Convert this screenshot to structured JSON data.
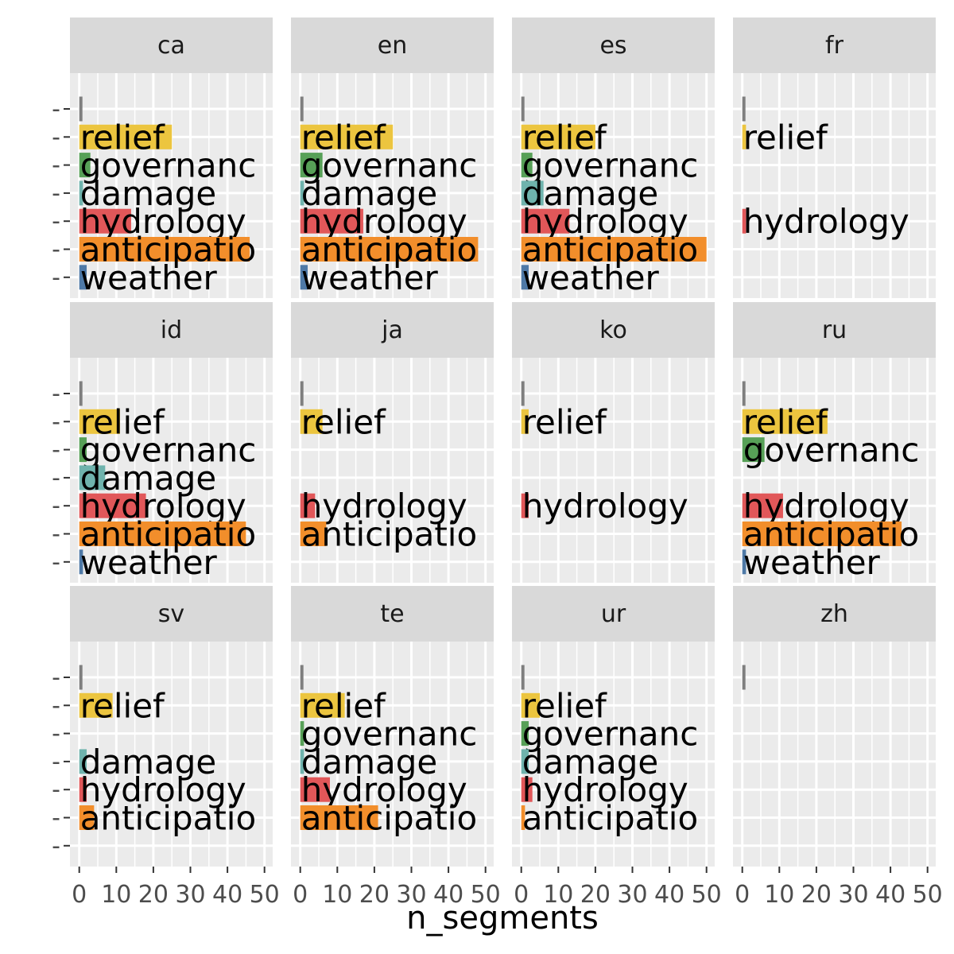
{
  "chart_data": {
    "type": "bar",
    "orientation": "horizontal",
    "xlabel": "n_segments",
    "ylabel": "",
    "xlim": [
      0,
      50
    ],
    "x_ticks": [
      0,
      10,
      20,
      30,
      40,
      50
    ],
    "x_tick_labels": [
      "0",
      "10",
      "20",
      "30",
      "40",
      "50"
    ],
    "grid": true,
    "legend": "none",
    "categories": [
      "",
      "relief",
      "governanc",
      "damage",
      "hydrology",
      "anticipatio",
      "weather"
    ],
    "y_tick_labels": [
      "-",
      "-",
      "-",
      "-",
      "-",
      "-",
      "-"
    ],
    "category_colors": {
      "": "#7f7f7f",
      "relief": "#ecc53f",
      "governanc": "#57a057",
      "damage": "#6fb3ad",
      "hydrology": "#e15759",
      "anticipatio": "#f28e2b",
      "weather": "#4e79a7"
    },
    "panels": [
      {
        "facet": "ca",
        "values": {
          "": 1,
          "relief": 25,
          "governanc": 3,
          "damage": 1,
          "hydrology": 14,
          "anticipatio": 46,
          "weather": 2
        }
      },
      {
        "facet": "en",
        "values": {
          "": 1,
          "relief": 25,
          "governanc": 6,
          "damage": 1,
          "hydrology": 17,
          "anticipatio": 48,
          "weather": 2
        }
      },
      {
        "facet": "es",
        "values": {
          "": 1,
          "relief": 20,
          "governanc": 3,
          "damage": 6,
          "hydrology": 13,
          "anticipatio": 50,
          "weather": 2
        }
      },
      {
        "facet": "fr",
        "values": {
          "": 1,
          "relief": 1,
          "hydrology": 1
        }
      },
      {
        "facet": "id",
        "values": {
          "": 1,
          "relief": 11,
          "governanc": 2,
          "damage": 7,
          "hydrology": 18,
          "anticipatio": 45,
          "weather": 1
        }
      },
      {
        "facet": "ja",
        "values": {
          "": 1,
          "relief": 6,
          "hydrology": 4,
          "anticipatio": 7
        }
      },
      {
        "facet": "ko",
        "values": {
          "": 1,
          "relief": 2,
          "hydrology": 2
        }
      },
      {
        "facet": "ru",
        "values": {
          "": 1,
          "relief": 23,
          "governanc": 6,
          "hydrology": 11,
          "anticipatio": 43,
          "weather": 1
        }
      },
      {
        "facet": "sv",
        "values": {
          "": 1,
          "relief": 9,
          "damage": 2,
          "hydrology": 2,
          "anticipatio": 4
        }
      },
      {
        "facet": "te",
        "values": {
          "": 1,
          "relief": 12,
          "governanc": 1,
          "damage": 1,
          "hydrology": 8,
          "anticipatio": 21
        }
      },
      {
        "facet": "ur",
        "values": {
          "": 1,
          "relief": 5,
          "governanc": 2,
          "damage": 2,
          "hydrology": 3,
          "anticipatio": 1
        }
      },
      {
        "facet": "zh",
        "values": {
          "": 1
        }
      }
    ]
  }
}
